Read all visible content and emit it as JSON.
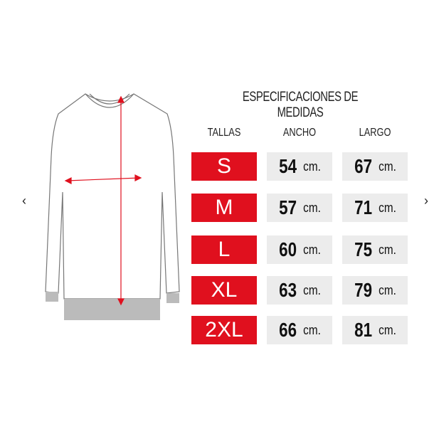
{
  "carousel": {
    "prev_icon": "chevron-left-icon",
    "next_icon": "chevron-right-icon",
    "prev": "‹",
    "next": "›"
  },
  "chart": {
    "title": "ESPECIFICACIONES DE MEDIDAS",
    "headers": [
      "TALLAS",
      "ANCHO",
      "LARGO"
    ],
    "unit": "cm.",
    "rows": [
      {
        "size": "S",
        "ancho": "54",
        "largo": "67"
      },
      {
        "size": "M",
        "ancho": "57",
        "largo": "71"
      },
      {
        "size": "L",
        "ancho": "60",
        "largo": "75"
      },
      {
        "size": "XL",
        "ancho": "63",
        "largo": "79"
      },
      {
        "size": "2XL",
        "ancho": "66",
        "largo": "81"
      }
    ]
  },
  "colors": {
    "accent": "#e0101e",
    "cell": "#ececec"
  }
}
